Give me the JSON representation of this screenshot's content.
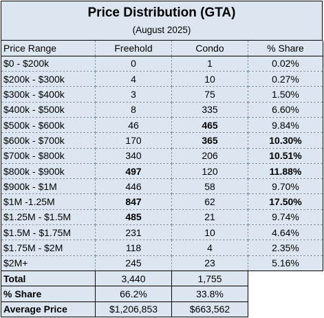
{
  "title": "Price Distribution (GTA)",
  "subtitle": "(August 2025)",
  "columns": [
    "Price Range",
    "Freehold",
    "Condo",
    "% Share"
  ],
  "rows": [
    {
      "range": "$0 - $200k",
      "freehold": "0",
      "condo": "1",
      "share": "0.02%"
    },
    {
      "range": "$200k - $300k",
      "freehold": "4",
      "condo": "10",
      "share": "0.27%"
    },
    {
      "range": "$300k - $400k",
      "freehold": "3",
      "condo": "75",
      "share": "1.50%"
    },
    {
      "range": "$400k - $500k",
      "freehold": "8",
      "condo": "335",
      "share": "6.60%"
    },
    {
      "range": "$500k - $600k",
      "freehold": "46",
      "condo": "465",
      "share": "9.84%"
    },
    {
      "range": "$600k - $700k",
      "freehold": "170",
      "condo": "365",
      "share": "10.30%"
    },
    {
      "range": "$700k - $800k",
      "freehold": "340",
      "condo": "206",
      "share": "10.51%"
    },
    {
      "range": "$800k - $900k",
      "freehold": "497",
      "condo": "120",
      "share": "11.88%"
    },
    {
      "range": "$900k - $1M",
      "freehold": "446",
      "condo": "58",
      "share": "9.70%"
    },
    {
      "range": "$1M -1.25M",
      "freehold": "847",
      "condo": "62",
      "share": "17.50%"
    },
    {
      "range": "$1.25M - $1.5M",
      "freehold": "485",
      "condo": "21",
      "share": "9.74%"
    },
    {
      "range": "$1.5M - $1.75M",
      "freehold": "231",
      "condo": "10",
      "share": "4.64%"
    },
    {
      "range": "$1.75M - $2M",
      "freehold": "118",
      "condo": "4",
      "share": "2.35%"
    },
    {
      "range": "$2M+",
      "freehold": "245",
      "condo": "23",
      "share": "5.16%"
    }
  ],
  "summary": {
    "total": {
      "label": "Total",
      "freehold": "3,440",
      "condo": "1,755"
    },
    "share": {
      "label": "% Share",
      "freehold": "66.2%",
      "condo": "33.8%"
    },
    "average": {
      "label": "Average Price",
      "freehold": "$1,206,853",
      "condo": "$663,562"
    }
  },
  "colors": {
    "cell_background": "#dce6f1",
    "border": "#000000",
    "grid": "#7f8fa6"
  }
}
